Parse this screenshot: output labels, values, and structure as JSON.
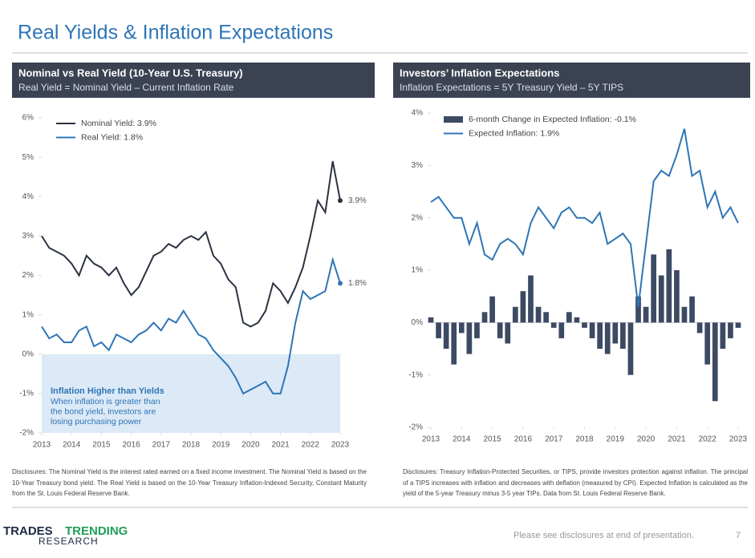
{
  "header": {
    "title": "Real Yields & Inflation Expectations"
  },
  "chart_data": [
    {
      "type": "line",
      "title": "Nominal vs Real Yield (10-Year U.S. Treasury)",
      "subtitle": "Real Yield = Nominal Yield – Current Inflation Rate",
      "x": [
        2013,
        2013.25,
        2013.5,
        2013.75,
        2014,
        2014.25,
        2014.5,
        2014.75,
        2015,
        2015.25,
        2015.5,
        2015.75,
        2016,
        2016.25,
        2016.5,
        2016.75,
        2017,
        2017.25,
        2017.5,
        2017.75,
        2018,
        2018.25,
        2018.5,
        2018.75,
        2019,
        2019.25,
        2019.5,
        2019.75,
        2020,
        2020.25,
        2020.5,
        2020.75,
        2021,
        2021.25,
        2021.5,
        2021.75,
        2022,
        2022.25,
        2022.5,
        2022.75,
        2023
      ],
      "series": [
        {
          "name": "Nominal Yield: 3.9%",
          "color": "#2b3240",
          "end_label": "3.9%",
          "values": [
            3.0,
            2.7,
            2.6,
            2.5,
            2.3,
            2.0,
            2.5,
            2.3,
            2.2,
            2.0,
            2.2,
            1.8,
            1.5,
            1.7,
            2.1,
            2.5,
            2.6,
            2.8,
            2.7,
            2.9,
            3.0,
            2.9,
            3.1,
            2.5,
            2.3,
            1.9,
            1.7,
            0.8,
            0.7,
            0.8,
            1.1,
            1.8,
            1.6,
            1.3,
            1.7,
            2.2,
            3.0,
            3.9,
            3.6,
            4.9,
            3.9
          ]
        },
        {
          "name": "Real Yield: 1.8%",
          "color": "#2e75b6",
          "end_label": "1.8%",
          "values": [
            0.7,
            0.4,
            0.5,
            0.3,
            0.3,
            0.6,
            0.7,
            0.2,
            0.3,
            0.1,
            0.5,
            0.4,
            0.3,
            0.5,
            0.6,
            0.8,
            0.6,
            0.9,
            0.8,
            1.1,
            0.8,
            0.5,
            0.4,
            0.1,
            -0.1,
            -0.3,
            -0.6,
            -1.0,
            -0.9,
            -0.8,
            -0.7,
            -1.0,
            -1.0,
            -0.3,
            0.8,
            1.6,
            1.4,
            1.5,
            1.6,
            2.4,
            1.8
          ]
        }
      ],
      "xlim": [
        2013,
        2023
      ],
      "xticks": [
        2013,
        2014,
        2015,
        2016,
        2017,
        2018,
        2019,
        2020,
        2021,
        2022,
        2023
      ],
      "ylim": [
        -2,
        6
      ],
      "yticks": [
        {
          "value": -2,
          "label": "-2%"
        },
        {
          "value": -1,
          "label": "-1%"
        },
        {
          "value": 0,
          "label": "0%"
        },
        {
          "value": 1,
          "label": "1%"
        },
        {
          "value": 2,
          "label": "2%"
        },
        {
          "value": 3,
          "label": "3%"
        },
        {
          "value": 4,
          "label": "4%"
        },
        {
          "value": 5,
          "label": "5%"
        },
        {
          "value": 6,
          "label": "6%"
        }
      ],
      "shaded_band": [
        -2,
        0
      ],
      "shade_color": "#dce9f6",
      "annotation": {
        "title": "Inflation Higher than Yields",
        "lines": [
          "When inflation is greater than",
          "the bond yield, investors are",
          "losing purchasing power"
        ]
      },
      "legend": "upper left",
      "grid": false
    },
    {
      "type": "combo",
      "title": "Investors’ Inflation Expectations",
      "subtitle": "Inflation Expectations = 5Y Treasury Yield – 5Y TIPS",
      "x": [
        2013,
        2013.25,
        2013.5,
        2013.75,
        2014,
        2014.25,
        2014.5,
        2014.75,
        2015,
        2015.25,
        2015.5,
        2015.75,
        2016,
        2016.25,
        2016.5,
        2016.75,
        2017,
        2017.25,
        2017.5,
        2017.75,
        2018,
        2018.25,
        2018.5,
        2018.75,
        2019,
        2019.25,
        2019.5,
        2019.75,
        2020,
        2020.25,
        2020.5,
        2020.75,
        2021,
        2021.25,
        2021.5,
        2021.75,
        2022,
        2022.25,
        2022.5,
        2022.75,
        2023
      ],
      "series": [
        {
          "name": "6-month Change in Expected Inflation: -0.1%",
          "type": "bar",
          "color": "#3d4a63",
          "values": [
            0.1,
            -0.3,
            -0.5,
            -0.8,
            -0.2,
            -0.6,
            -0.3,
            0.2,
            0.5,
            -0.3,
            -0.4,
            0.3,
            0.6,
            0.9,
            0.3,
            0.2,
            -0.1,
            -0.3,
            0.2,
            0.1,
            -0.1,
            -0.3,
            -0.5,
            -0.6,
            -0.4,
            -0.5,
            -1.0,
            0.5,
            0.3,
            1.3,
            0.9,
            1.4,
            1.0,
            0.3,
            0.5,
            -0.2,
            -0.8,
            -1.5,
            -0.5,
            -0.3,
            -0.1
          ]
        },
        {
          "name": "Expected Inflation: 1.9%",
          "type": "line",
          "color": "#2e75b6",
          "values": [
            2.3,
            2.4,
            2.2,
            2.0,
            2.0,
            1.5,
            1.9,
            1.3,
            1.2,
            1.5,
            1.6,
            1.5,
            1.3,
            1.9,
            2.2,
            2.0,
            1.8,
            2.1,
            2.2,
            2.0,
            2.0,
            1.9,
            2.1,
            1.5,
            1.6,
            1.7,
            1.5,
            0.3,
            1.5,
            2.7,
            2.9,
            2.8,
            3.2,
            3.7,
            2.8,
            2.9,
            2.2,
            2.5,
            2.0,
            2.2,
            1.9
          ]
        }
      ],
      "xlim": [
        2013,
        2023
      ],
      "xticks": [
        2013,
        2014,
        2015,
        2016,
        2017,
        2018,
        2019,
        2020,
        2021,
        2022,
        2023
      ],
      "ylim": [
        -2,
        4
      ],
      "yticks": [
        {
          "value": -2,
          "label": "-2%"
        },
        {
          "value": -1,
          "label": "-1%"
        },
        {
          "value": 0,
          "label": "0%"
        },
        {
          "value": 1,
          "label": "1%"
        },
        {
          "value": 2,
          "label": "2%"
        },
        {
          "value": 3,
          "label": "3%"
        },
        {
          "value": 4,
          "label": "4%"
        }
      ],
      "legend": "upper left",
      "grid": false
    }
  ],
  "disclosures": [
    "Disclosures: The Nominal Yield is the interest rated earned on a fixed income investment. The Nominal Yield is based on the 10-Year Treasury bond yield. The Real Yield is based on the 10-Year Treasury Inflation-Indexed Security, Constant Maturity from the St. Louis Federal Reserve Bank.",
    "Disclosures: Treasury Inflation-Protected Securities, or TIPS, provide investors protection against inflation. The principal of a TIPS increases with inflation and decreases with deflation (measured by CPI). Expected Inflation is calculated as the yield of the 5-year Treasury minus 3-5 year TIPs. Data from St. Louis Federal Reserve Bank."
  ],
  "footer": {
    "logo_words": [
      "TRADES",
      "TRENDING",
      "RESEARCH"
    ],
    "note": "Please see disclosures at end of presentation.",
    "page": "7"
  }
}
